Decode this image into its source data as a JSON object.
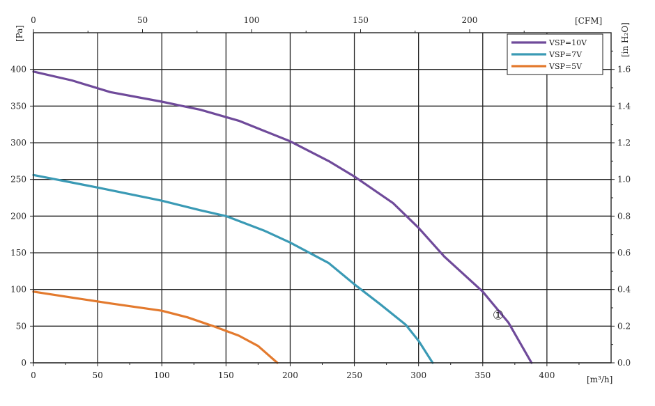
{
  "chart_data": {
    "type": "line",
    "x_bottom": {
      "unit_label": "[m³/h]",
      "range": [
        0,
        450
      ],
      "ticks": [
        "0",
        "50",
        "100",
        "150",
        "200",
        "250",
        "300",
        "350",
        "400"
      ]
    },
    "x_top": {
      "unit_label": "[CFM]",
      "ticks": [
        "0",
        "50",
        "100",
        "150",
        "200"
      ],
      "tick_values_m3h": [
        0,
        84.95,
        169.9,
        254.85,
        339.8
      ]
    },
    "y_left": {
      "unit_label": "[Pa]",
      "range": [
        0,
        450
      ],
      "ticks": [
        "0",
        "50",
        "100",
        "150",
        "200",
        "250",
        "300",
        "350",
        "400"
      ]
    },
    "y_right": {
      "unit_label": "[in H₂O]",
      "ticks": [
        "0.0",
        "0.2",
        "0.4",
        "0.6",
        "0.8",
        "1.0",
        "1.2",
        "1.4",
        "1.6"
      ]
    },
    "grid": true,
    "legend_position": "top-right",
    "series": [
      {
        "name": "VSP=10V",
        "color": "#6f4a9a",
        "x": [
          0,
          30,
          60,
          100,
          130,
          160,
          200,
          230,
          250,
          280,
          300,
          320,
          350,
          370,
          388
        ],
        "y": [
          397,
          385,
          369,
          356,
          345,
          330,
          302,
          275,
          254,
          218,
          184,
          145,
          97,
          55,
          0
        ]
      },
      {
        "name": "VSP=7V",
        "color": "#3a9ab5",
        "x": [
          0,
          50,
          100,
          130,
          150,
          180,
          200,
          230,
          250,
          270,
          290,
          300,
          311
        ],
        "y": [
          256,
          239,
          221,
          208,
          200,
          180,
          164,
          136,
          107,
          80,
          52,
          30,
          0
        ]
      },
      {
        "name": "VSP=5V",
        "color": "#e37a2e",
        "x": [
          0,
          30,
          60,
          100,
          120,
          140,
          160,
          175,
          190
        ],
        "y": [
          97,
          89,
          81,
          71,
          62,
          50,
          37,
          23,
          0
        ]
      }
    ],
    "annotations": [
      {
        "text": "①",
        "x": 362,
        "y": 65
      }
    ]
  }
}
